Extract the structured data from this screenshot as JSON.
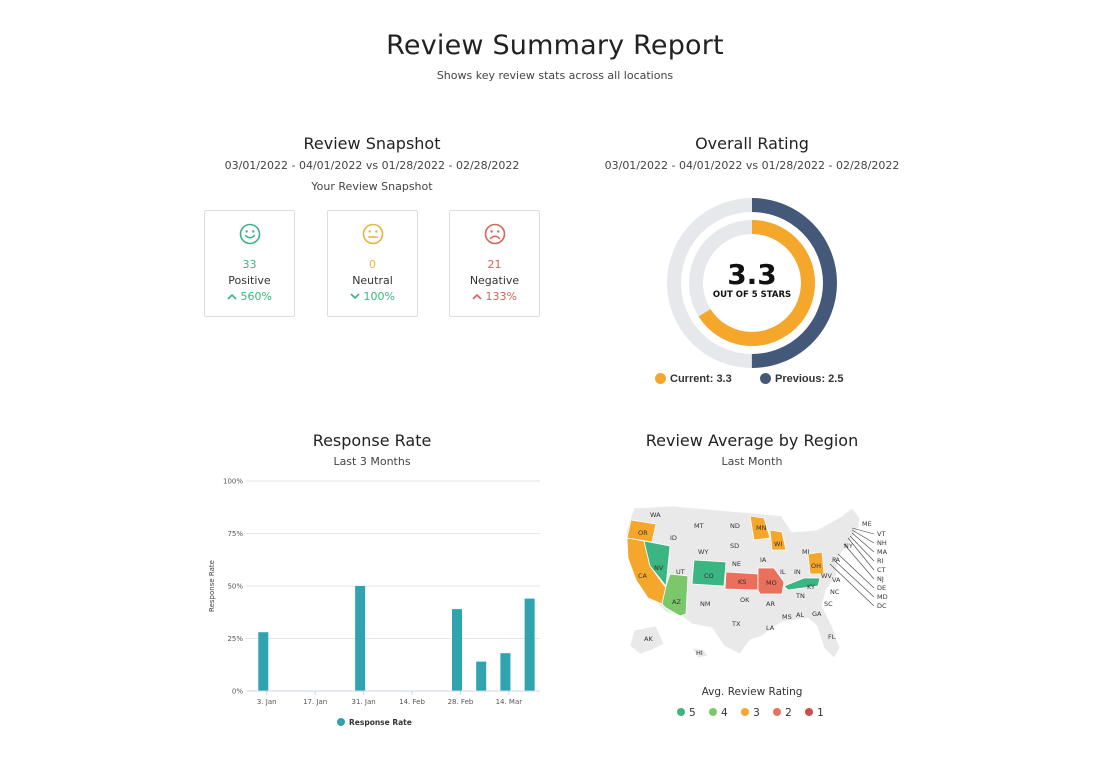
{
  "header": {
    "title": "Review Summary Report",
    "subtitle": "Shows key review stats across all locations"
  },
  "snapshot": {
    "title": "Review Snapshot",
    "date_range": "03/01/2022 - 04/01/2022 vs 01/28/2022 - 02/28/2022",
    "subtitle": "Your Review Snapshot",
    "cards": [
      {
        "icon": "smile-icon",
        "count": "33",
        "label": "Positive",
        "change": "560%",
        "direction": "up",
        "color": "#3bb582",
        "change_color": "#3bb582"
      },
      {
        "icon": "neutral-face-icon",
        "count": "0",
        "label": "Neutral",
        "change": "100%",
        "direction": "down",
        "color": "#e7b43c",
        "change_color": "#3bb582"
      },
      {
        "icon": "frown-icon",
        "count": "21",
        "label": "Negative",
        "change": "133%",
        "direction": "up",
        "color": "#dc6155",
        "change_color": "#dc6155"
      }
    ]
  },
  "overall_rating": {
    "title": "Overall Rating",
    "date_range": "03/01/2022 - 04/01/2022 vs 01/28/2022 - 02/28/2022",
    "value": "3.3",
    "caption": "OUT OF 5 STARS",
    "current_label": "Current: 3.3",
    "previous_label": "Previous: 2.5",
    "current": 3.3,
    "previous": 2.5,
    "max": 5,
    "current_color": "#f4a72b",
    "previous_color": "#44597a",
    "track_color": "#e6e8eb"
  },
  "response_rate": {
    "title": "Response Rate",
    "subtitle": "Last 3 Months",
    "ylabel": "Response Rate",
    "legend": "Response Rate",
    "color": "#2fa3ae"
  },
  "region": {
    "title": "Review Average by Region",
    "subtitle": "Last Month",
    "legend_title": "Avg. Review Rating",
    "legend": [
      {
        "label": "5",
        "color": "#3bb582"
      },
      {
        "label": "4",
        "color": "#7ac869"
      },
      {
        "label": "3",
        "color": "#f4a72b"
      },
      {
        "label": "2",
        "color": "#e8705c"
      },
      {
        "label": "1",
        "color": "#cf4d4d"
      }
    ],
    "base_color": "#e9e9e9",
    "states": [
      {
        "label": "WA",
        "rating": null
      },
      {
        "label": "OR",
        "rating": 3
      },
      {
        "label": "CA",
        "rating": 3
      },
      {
        "label": "NV",
        "rating": 5
      },
      {
        "label": "ID",
        "rating": null
      },
      {
        "label": "MT",
        "rating": null
      },
      {
        "label": "WY",
        "rating": null
      },
      {
        "label": "UT",
        "rating": null
      },
      {
        "label": "AZ",
        "rating": 4
      },
      {
        "label": "CO",
        "rating": 5
      },
      {
        "label": "NM",
        "rating": null
      },
      {
        "label": "ND",
        "rating": null
      },
      {
        "label": "SD",
        "rating": null
      },
      {
        "label": "NE",
        "rating": null
      },
      {
        "label": "KS",
        "rating": 2
      },
      {
        "label": "OK",
        "rating": null
      },
      {
        "label": "TX",
        "rating": null
      },
      {
        "label": "MN",
        "rating": 3
      },
      {
        "label": "IA",
        "rating": null
      },
      {
        "label": "MO",
        "rating": 2
      },
      {
        "label": "AR",
        "rating": null
      },
      {
        "label": "LA",
        "rating": null
      },
      {
        "label": "WI",
        "rating": 3
      },
      {
        "label": "IL",
        "rating": null
      },
      {
        "label": "MI",
        "rating": null
      },
      {
        "label": "IN",
        "rating": null
      },
      {
        "label": "OH",
        "rating": 3
      },
      {
        "label": "KY",
        "rating": 5
      },
      {
        "label": "TN",
        "rating": null
      },
      {
        "label": "MS",
        "rating": null
      },
      {
        "label": "AL",
        "rating": null
      },
      {
        "label": "GA",
        "rating": null
      },
      {
        "label": "FL",
        "rating": null
      },
      {
        "label": "SC",
        "rating": null
      },
      {
        "label": "NC",
        "rating": null
      },
      {
        "label": "VA",
        "rating": null
      },
      {
        "label": "WV",
        "rating": null
      },
      {
        "label": "PA",
        "rating": null
      },
      {
        "label": "NY",
        "rating": null
      },
      {
        "label": "ME",
        "rating": null
      },
      {
        "label": "VT",
        "rating": null
      },
      {
        "label": "NH",
        "rating": null
      },
      {
        "label": "MA",
        "rating": null
      },
      {
        "label": "RI",
        "rating": null
      },
      {
        "label": "CT",
        "rating": null
      },
      {
        "label": "NJ",
        "rating": null
      },
      {
        "label": "DE",
        "rating": null
      },
      {
        "label": "MD",
        "rating": null
      },
      {
        "label": "DC",
        "rating": null
      },
      {
        "label": "AK",
        "rating": null
      },
      {
        "label": "HI",
        "rating": null
      }
    ]
  },
  "chart_data": [
    {
      "type": "bar",
      "title": "Response Rate",
      "subtitle": "Last 3 Months",
      "xlabel": "",
      "ylabel": "Response Rate",
      "x_tick_labels": [
        "3. Jan",
        "17. Jan",
        "31. Jan",
        "14. Feb",
        "28. Feb",
        "14. Mar"
      ],
      "y_tick_labels": [
        "0%",
        "25%",
        "50%",
        "75%",
        "100%"
      ],
      "ylim": [
        0,
        100
      ],
      "grid": true,
      "legend": "bottom-center",
      "series": [
        {
          "name": "Response Rate",
          "points": [
            {
              "x": "2022-01-02",
              "y": 28
            },
            {
              "x": "2022-01-30",
              "y": 50
            },
            {
              "x": "2022-02-27",
              "y": 39
            },
            {
              "x": "2022-03-06",
              "y": 14
            },
            {
              "x": "2022-03-13",
              "y": 18
            },
            {
              "x": "2022-03-20",
              "y": 44
            }
          ]
        }
      ]
    },
    {
      "type": "pie",
      "title": "Overall Rating",
      "subtitle": "03/01/2022 - 04/01/2022 vs 01/28/2022 - 02/28/2022",
      "max": 5,
      "series": [
        {
          "name": "Current",
          "value": 3.3
        },
        {
          "name": "Previous",
          "value": 2.5
        }
      ]
    }
  ]
}
